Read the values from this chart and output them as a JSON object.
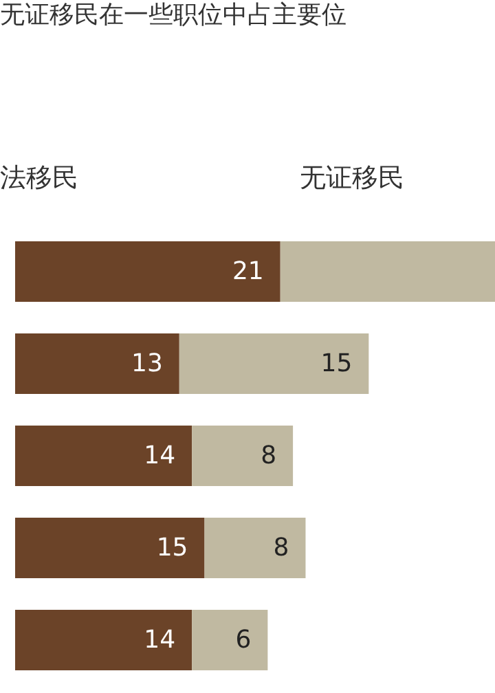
{
  "chart_data": {
    "type": "bar",
    "orientation": "horizontal",
    "stacked": true,
    "title": "无证移民在一些职位中占主要位",
    "categories": [
      null,
      null,
      null,
      null,
      null
    ],
    "series": [
      {
        "name": "法移民",
        "color": "#6b4328",
        "values": [
          21,
          13,
          14,
          15,
          14
        ],
        "value_labels": [
          "21",
          "13",
          "14",
          "15",
          "14"
        ]
      },
      {
        "name": "无证移民",
        "color": "#c0b9a1",
        "values": [
          17,
          15,
          8,
          8,
          6
        ],
        "value_labels": [
          null,
          "15",
          "8",
          "8",
          "6"
        ]
      }
    ],
    "xlim": [
      0,
      38
    ],
    "legend": "top",
    "grid": false
  }
}
